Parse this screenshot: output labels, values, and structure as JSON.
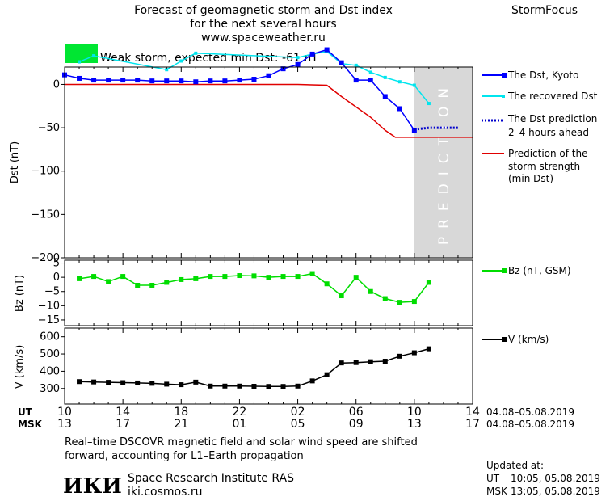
{
  "header": {
    "title_lines": [
      "Forecast of geomagnetic storm and Dst index",
      "for the next several hours",
      "www.spaceweather.ru"
    ],
    "brand": "StormFocus",
    "storm_label": "Weak storm, expected min Dst: -61 nT"
  },
  "colors": {
    "storm_swatch": "#00e632",
    "dst_kyoto": "#0000ff",
    "dst_recovered": "#00e5ee",
    "dst_prediction": "#0000cc",
    "min_dst_prediction": "#e00000",
    "bz": "#00dd00",
    "speed": "#000000",
    "prediction_zone": "#d8d8d8"
  },
  "chart_data": [
    {
      "type": "line",
      "ylabel": "Dst (nT)",
      "ylim": [
        -200,
        20
      ],
      "yticks": [
        0,
        -50,
        -100,
        -150,
        -200
      ],
      "ytick_labels": [
        "0",
        "−50",
        "−100",
        "−150",
        "−200"
      ],
      "xlim": [
        10,
        38
      ],
      "prediction_zone": {
        "from": 34,
        "to": 38,
        "label": "PREDICTION"
      },
      "series": [
        {
          "name": "The Dst, Kyoto",
          "x": [
            10,
            11,
            12,
            13,
            14,
            15,
            16,
            17,
            18,
            19,
            20,
            21,
            22,
            23,
            24,
            25,
            26,
            27,
            28,
            29,
            30,
            31,
            32,
            33,
            34
          ],
          "y": [
            11,
            7,
            5,
            5,
            5,
            5,
            4,
            4,
            4,
            3,
            4,
            4,
            5,
            6,
            10,
            18,
            23,
            35,
            40,
            25,
            5,
            5,
            -14,
            -28,
            -53
          ]
        },
        {
          "name": "The recovered Dst",
          "x": [
            11,
            12,
            17,
            18,
            19,
            26,
            27,
            28,
            29,
            30,
            31,
            32,
            33,
            34,
            35
          ],
          "y": [
            26,
            33,
            17,
            27,
            36,
            31,
            35,
            38,
            24,
            22,
            14,
            8,
            3,
            -1,
            -22
          ]
        },
        {
          "name": "The Dst prediction 2-4 hours ahead",
          "x": [
            34,
            35,
            36,
            37
          ],
          "y": [
            -52,
            -50,
            -50,
            -50
          ]
        },
        {
          "name": "Prediction of the storm strength (min Dst)",
          "x": [
            10,
            26,
            28,
            29,
            31,
            32,
            32.7,
            38
          ],
          "y": [
            0,
            0,
            -1,
            -14,
            -38,
            -53,
            -61,
            -61
          ]
        }
      ]
    },
    {
      "type": "line",
      "ylabel": "Bz (nT)",
      "ylim": [
        -17,
        6
      ],
      "yticks": [
        5,
        0,
        -5,
        -10,
        -15
      ],
      "ytick_labels": [
        "5",
        "0",
        "−5",
        "−10",
        "−15"
      ],
      "xlim": [
        10,
        38
      ],
      "series": [
        {
          "name": "Bz (nT, GSM)",
          "x": [
            11,
            12,
            13,
            14,
            15,
            16,
            17,
            18,
            19,
            20,
            21,
            22,
            23,
            24,
            25,
            26,
            27,
            28,
            29,
            30,
            31,
            32,
            33,
            34,
            35
          ],
          "y": [
            -0.5,
            0.3,
            -1.5,
            0.3,
            -2.8,
            -2.8,
            -1.8,
            -0.8,
            -0.5,
            0.3,
            0.3,
            0.6,
            0.5,
            0,
            0.3,
            0.3,
            1.3,
            -2.3,
            -6.5,
            0,
            -5,
            -7.5,
            -8.8,
            -8.5,
            -1.8
          ]
        }
      ]
    },
    {
      "type": "line",
      "ylabel": "V (km/s)",
      "ylim": [
        210,
        650
      ],
      "yticks": [
        600,
        500,
        400,
        300
      ],
      "ytick_labels": [
        "600",
        "500",
        "400",
        "300"
      ],
      "xlim": [
        10,
        38
      ],
      "series": [
        {
          "name": "V (km/s)",
          "x": [
            11,
            12,
            13,
            14,
            15,
            16,
            17,
            18,
            19,
            20,
            21,
            22,
            23,
            24,
            25,
            26,
            27,
            28,
            29,
            30,
            31,
            32,
            33,
            34,
            35
          ],
          "y": [
            340,
            338,
            336,
            334,
            332,
            330,
            325,
            322,
            337,
            314,
            314,
            314,
            313,
            312,
            312,
            314,
            344,
            380,
            448,
            450,
            455,
            458,
            487,
            507,
            530
          ]
        }
      ]
    }
  ],
  "axes": {
    "ut_label": "UT",
    "msk_label": "MSK",
    "ut_ticks": [
      "10",
      "14",
      "18",
      "22",
      "02",
      "06",
      "10",
      "14"
    ],
    "msk_ticks": [
      "13",
      "17",
      "21",
      "01",
      "05",
      "09",
      "13",
      "17"
    ],
    "ut_range": "04.08–05.08.2019",
    "msk_range": "04.08–05.08.2019"
  },
  "legend": {
    "kyoto": "The Dst, Kyoto",
    "recovered": "The recovered Dst",
    "prediction_line1": "The Dst prediction",
    "prediction_line2": "2–4 hours ahead",
    "min_line1": "Prediction of the",
    "min_line2": "storm strength",
    "min_line3": "(min Dst)",
    "bz": "Bz (nT, GSM)",
    "speed": "V (km/s)"
  },
  "footer": {
    "note_line1": "Real–time DSCOVR magnetic field and solar wind speed are shifted",
    "note_line2": "forward, accounting for L1–Earth propagation",
    "logo": "ИКИ",
    "institute": "Space Research Institute RAS",
    "website": "iki.cosmos.ru",
    "updated_label": "Updated at:",
    "updated_ut_label": "UT",
    "updated_ut": "10:05, 05.08.2019",
    "updated_msk_label": "MSK",
    "updated_msk": "13:05, 05.08.2019"
  }
}
